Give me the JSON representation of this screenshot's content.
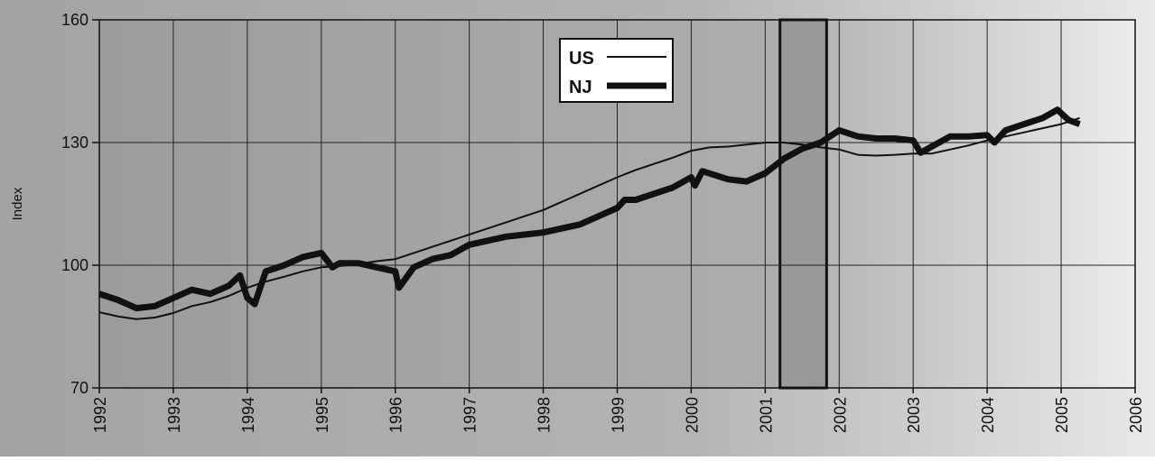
{
  "chart_data": {
    "type": "line",
    "ylabel": "Index",
    "xlim": [
      1992,
      2006
    ],
    "xticks": [
      1992,
      1993,
      1994,
      1995,
      1996,
      1997,
      1998,
      1999,
      2000,
      2001,
      2002,
      2003,
      2004,
      2005,
      2006
    ],
    "ylim": [
      70,
      160
    ],
    "yticks": [
      70,
      100,
      130,
      160
    ],
    "grid": true,
    "shaded_region": {
      "x": [
        2001.2,
        2001.83
      ],
      "color": "#999999"
    },
    "legend": "top-center",
    "series": [
      {
        "name": "US",
        "color": "#111111",
        "width": 2,
        "x": [
          1992,
          1992.25,
          1992.5,
          1992.75,
          1993,
          1993.25,
          1993.5,
          1993.75,
          1994,
          1994.25,
          1994.5,
          1994.75,
          1995,
          1995.25,
          1995.5,
          1995.75,
          1996,
          1996.25,
          1996.5,
          1996.75,
          1997,
          1997.25,
          1997.5,
          1997.75,
          1998,
          1998.25,
          1998.5,
          1998.75,
          1999,
          1999.25,
          1999.5,
          1999.75,
          2000,
          2000.25,
          2000.5,
          2000.75,
          2001,
          2001.25,
          2001.5,
          2001.75,
          2002,
          2002.25,
          2002.5,
          2002.75,
          2003,
          2003.25,
          2003.5,
          2003.75,
          2004,
          2004.25,
          2004.5,
          2004.75,
          2005,
          2005.25
        ],
        "values": [
          88.5,
          87.5,
          86.8,
          87.2,
          88.3,
          90,
          91,
          92.5,
          94.5,
          96,
          97.2,
          98.5,
          99.5,
          99.8,
          100.3,
          101,
          101.5,
          103,
          104.5,
          106,
          107.5,
          109,
          110.5,
          112,
          113.5,
          115.5,
          117.5,
          119.5,
          121.5,
          123.3,
          124.8,
          126.3,
          128,
          128.8,
          129,
          129.5,
          130,
          130,
          129.5,
          128.8,
          128.3,
          127,
          126.8,
          127,
          127.3,
          127.3,
          128.3,
          129.3,
          130.5,
          131.5,
          132.5,
          133.5,
          134.5,
          136
        ]
      },
      {
        "name": "NJ",
        "color": "#111111",
        "width": 7,
        "x": [
          1992,
          1992.25,
          1992.5,
          1992.75,
          1993,
          1993.25,
          1993.5,
          1993.75,
          1993.9,
          1994,
          1994.1,
          1994.25,
          1994.5,
          1994.75,
          1995,
          1995.15,
          1995.25,
          1995.5,
          1995.75,
          1996,
          1996.05,
          1996.25,
          1996.5,
          1996.75,
          1997,
          1997.25,
          1997.5,
          1997.75,
          1998,
          1998.25,
          1998.5,
          1998.75,
          1999,
          1999.1,
          1999.25,
          1999.5,
          1999.75,
          2000,
          2000.05,
          2000.15,
          2000.5,
          2000.75,
          2001,
          2001.25,
          2001.5,
          2001.75,
          2002,
          2002.25,
          2002.5,
          2002.75,
          2003,
          2003.1,
          2003.25,
          2003.5,
          2003.75,
          2004,
          2004.1,
          2004.25,
          2004.5,
          2004.75,
          2004.95,
          2005.1,
          2005.25
        ],
        "values": [
          93,
          91.5,
          89.5,
          90,
          92,
          94,
          93,
          95,
          97.5,
          92,
          90.5,
          98.5,
          100,
          102,
          103,
          99.5,
          100.5,
          100.5,
          99.5,
          98.5,
          94.5,
          99.5,
          101.5,
          102.5,
          105,
          106,
          107,
          107.5,
          108,
          109,
          110,
          112,
          114,
          116,
          116,
          117.5,
          119,
          121.5,
          119.5,
          123,
          121,
          120.5,
          122.5,
          126,
          128.5,
          130,
          133,
          131.5,
          131,
          131,
          130.5,
          127.5,
          129,
          131.5,
          131.5,
          131.8,
          130,
          133,
          134.5,
          136,
          138,
          135.5,
          134.5
        ]
      }
    ]
  }
}
